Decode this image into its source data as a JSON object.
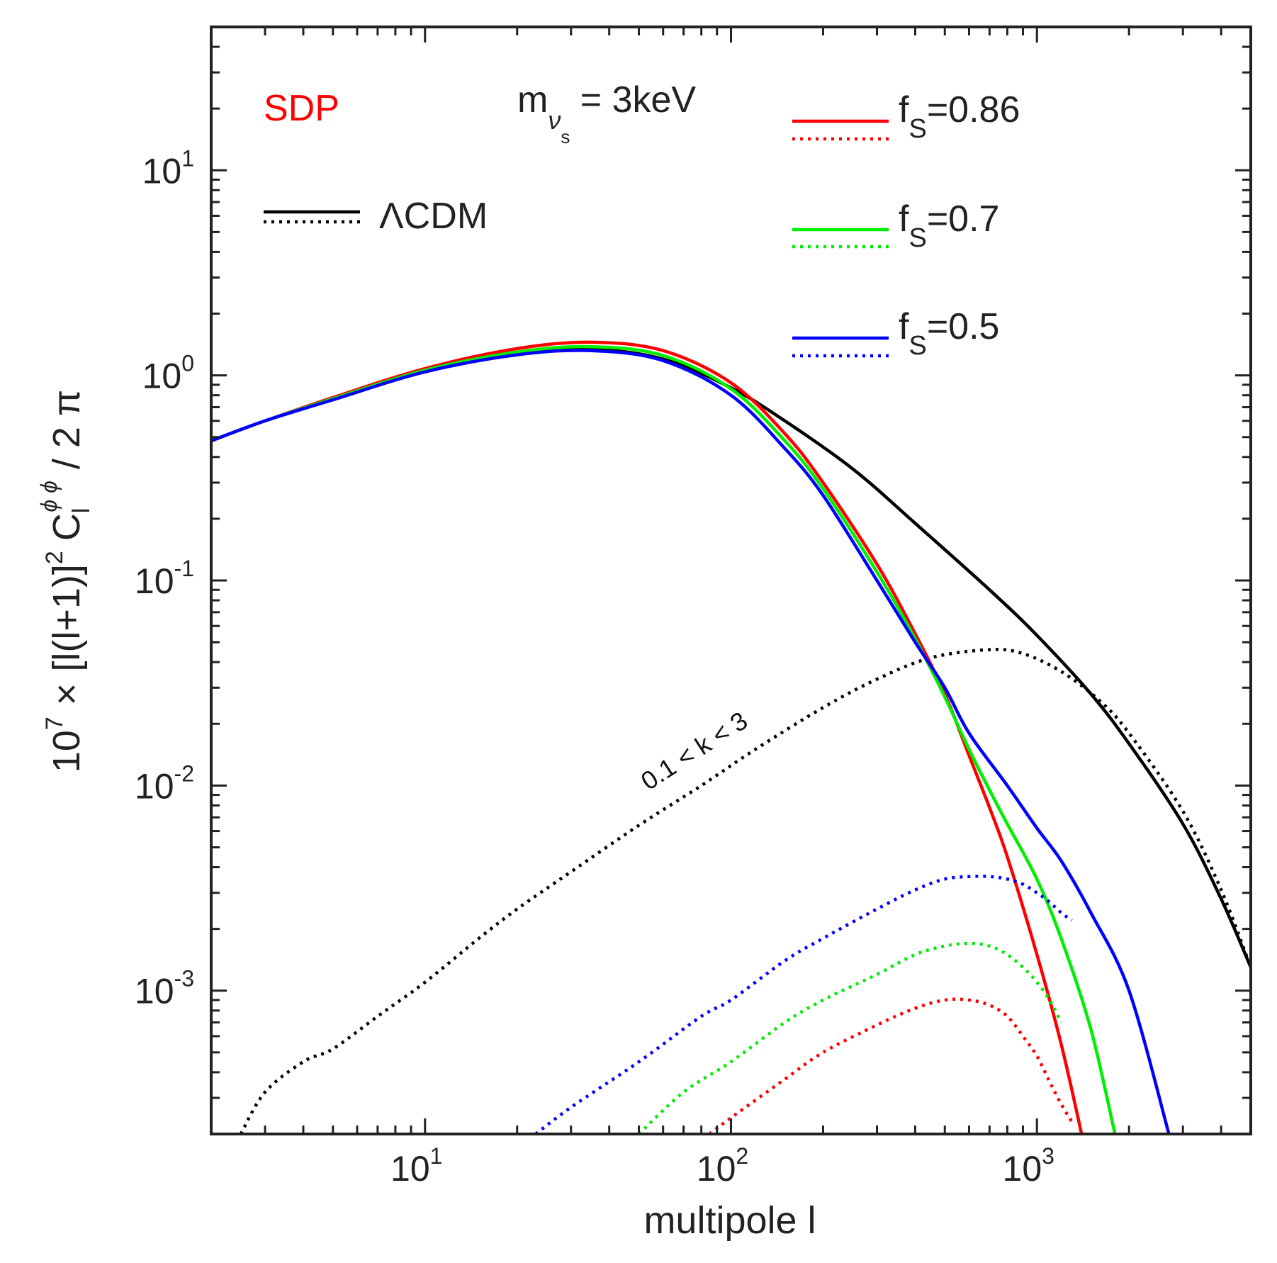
{
  "chart_data": {
    "type": "line",
    "scale": {
      "x": "log",
      "y": "log"
    },
    "xlim": [
      2,
      5000
    ],
    "ylim": [
      0.0002,
      50
    ],
    "grid": false,
    "xlabel": "multipole l",
    "ylabel": {
      "prefix": "10",
      "prefix_exp": "7",
      "times": "×",
      "bracket": "[l(l+1)]",
      "bracket_exp": "2",
      "c": "C",
      "c_sub": "l",
      "c_sup": "ϕ ϕ",
      "suffix": "/ 2 π"
    },
    "x_ticks": [
      {
        "base": "10",
        "exp": "1",
        "value": 10
      },
      {
        "base": "10",
        "exp": "2",
        "value": 100
      },
      {
        "base": "10",
        "exp": "3",
        "value": 1000
      }
    ],
    "y_ticks": [
      {
        "base": "10",
        "exp": "1",
        "value": 10
      },
      {
        "base": "10",
        "exp": "0",
        "value": 1
      },
      {
        "base": "10",
        "exp": "-1",
        "value": 0.1
      },
      {
        "base": "10",
        "exp": "-2",
        "value": 0.01
      },
      {
        "base": "10",
        "exp": "-3",
        "value": 0.001
      }
    ],
    "annotations": {
      "sdp": "SDP",
      "mass_m": "m",
      "mass_nu": "ν",
      "mass_s": "s",
      "mass_value": " = 3keV",
      "k_range": "0.1 < k < 3"
    },
    "legend": [
      {
        "label": "ΛCDM",
        "label_sub": "",
        "color": "#000000"
      },
      {
        "label": "f",
        "label_sub": "S",
        "label_rest": "=0.86",
        "color": "#ff0000"
      },
      {
        "label": "f",
        "label_sub": "S",
        "label_rest": "=0.7",
        "color": "#00ee00"
      },
      {
        "label": "f",
        "label_sub": "S",
        "label_rest": "=0.5",
        "color": "#0000ff"
      }
    ],
    "series": [
      {
        "name": "ΛCDM total",
        "style": "solid",
        "color": "#000000",
        "x": [
          2,
          3,
          5,
          10,
          20,
          35,
          60,
          100,
          150,
          250,
          400,
          700,
          1000,
          1500,
          2000,
          3000,
          4000,
          5000
        ],
        "y": [
          0.48,
          0.6,
          0.77,
          1.05,
          1.27,
          1.34,
          1.2,
          0.87,
          0.6,
          0.35,
          0.19,
          0.09,
          0.054,
          0.028,
          0.016,
          0.0065,
          0.0028,
          0.0013
        ]
      },
      {
        "name": "ΛCDM 0.1<k<3",
        "style": "dotted",
        "color": "#000000",
        "x": [
          2.5,
          3,
          4,
          5,
          7,
          10,
          15,
          20,
          30,
          50,
          80,
          120,
          200,
          300,
          450,
          700,
          900,
          1200,
          1600,
          2000,
          3000,
          4000,
          5000
        ],
        "y": [
          0.0002,
          0.00032,
          0.00045,
          0.00052,
          0.00075,
          0.0011,
          0.0018,
          0.0025,
          0.0038,
          0.0064,
          0.01,
          0.015,
          0.024,
          0.033,
          0.042,
          0.046,
          0.044,
          0.036,
          0.026,
          0.018,
          0.0075,
          0.0031,
          0.0013
        ]
      },
      {
        "name": "fS=0.86 total",
        "style": "solid",
        "color": "#ff0000",
        "x": [
          2,
          3,
          5,
          10,
          20,
          35,
          60,
          100,
          150,
          200,
          300,
          400,
          500,
          600,
          700,
          800,
          1000,
          1200,
          1400
        ],
        "y": [
          0.48,
          0.6,
          0.78,
          1.08,
          1.35,
          1.45,
          1.32,
          0.92,
          0.52,
          0.3,
          0.12,
          0.055,
          0.028,
          0.014,
          0.0078,
          0.0045,
          0.0015,
          0.00055,
          0.0002
        ]
      },
      {
        "name": "fS=0.86 0.1<k<3",
        "style": "dotted",
        "color": "#ff0000",
        "x": [
          85,
          100,
          150,
          200,
          300,
          400,
          500,
          600,
          700,
          800,
          900,
          1000,
          1100,
          1200,
          1300
        ],
        "y": [
          0.0002,
          0.00024,
          0.00037,
          0.0005,
          0.00068,
          0.00082,
          0.0009,
          0.0009,
          0.00085,
          0.00075,
          0.0006,
          0.00048,
          0.00036,
          0.00028,
          0.00023
        ]
      },
      {
        "name": "fS=0.7 total",
        "style": "solid",
        "color": "#00ee00",
        "x": [
          2,
          3,
          5,
          10,
          20,
          35,
          60,
          100,
          150,
          200,
          300,
          400,
          500,
          600,
          700,
          800,
          1000,
          1200,
          1500,
          1800
        ],
        "y": [
          0.48,
          0.6,
          0.77,
          1.06,
          1.3,
          1.38,
          1.25,
          0.86,
          0.48,
          0.28,
          0.11,
          0.052,
          0.027,
          0.015,
          0.0095,
          0.0065,
          0.0035,
          0.0018,
          0.00065,
          0.0002
        ]
      },
      {
        "name": "fS=0.7 0.1<k<3",
        "style": "dotted",
        "color": "#00ee00",
        "x": [
          50,
          70,
          100,
          150,
          200,
          300,
          400,
          500,
          600,
          700,
          800,
          900,
          1000,
          1100,
          1200
        ],
        "y": [
          0.0002,
          0.00032,
          0.00045,
          0.0007,
          0.0009,
          0.0012,
          0.0015,
          0.00165,
          0.0017,
          0.00165,
          0.0015,
          0.0013,
          0.0011,
          0.0009,
          0.0007
        ]
      },
      {
        "name": "fS=0.5 total",
        "style": "solid",
        "color": "#0000ff",
        "x": [
          2,
          3,
          5,
          10,
          20,
          35,
          60,
          100,
          150,
          200,
          300,
          400,
          500,
          600,
          800,
          1000,
          1200,
          1500,
          2000,
          2700
        ],
        "y": [
          0.48,
          0.6,
          0.76,
          1.04,
          1.26,
          1.32,
          1.18,
          0.8,
          0.44,
          0.26,
          0.1,
          0.05,
          0.03,
          0.018,
          0.01,
          0.0062,
          0.0043,
          0.0024,
          0.001,
          0.0002
        ]
      },
      {
        "name": "fS=0.5 0.1<k<3",
        "style": "dotted",
        "color": "#0000ff",
        "x": [
          23,
          30,
          50,
          80,
          100,
          150,
          200,
          300,
          400,
          500,
          600,
          700,
          800,
          900,
          1000,
          1100,
          1200,
          1300
        ],
        "y": [
          0.0002,
          0.00027,
          0.00045,
          0.00075,
          0.0009,
          0.0014,
          0.0018,
          0.0025,
          0.0031,
          0.0035,
          0.0036,
          0.0036,
          0.0035,
          0.0033,
          0.003,
          0.0027,
          0.0024,
          0.0022
        ]
      }
    ]
  }
}
